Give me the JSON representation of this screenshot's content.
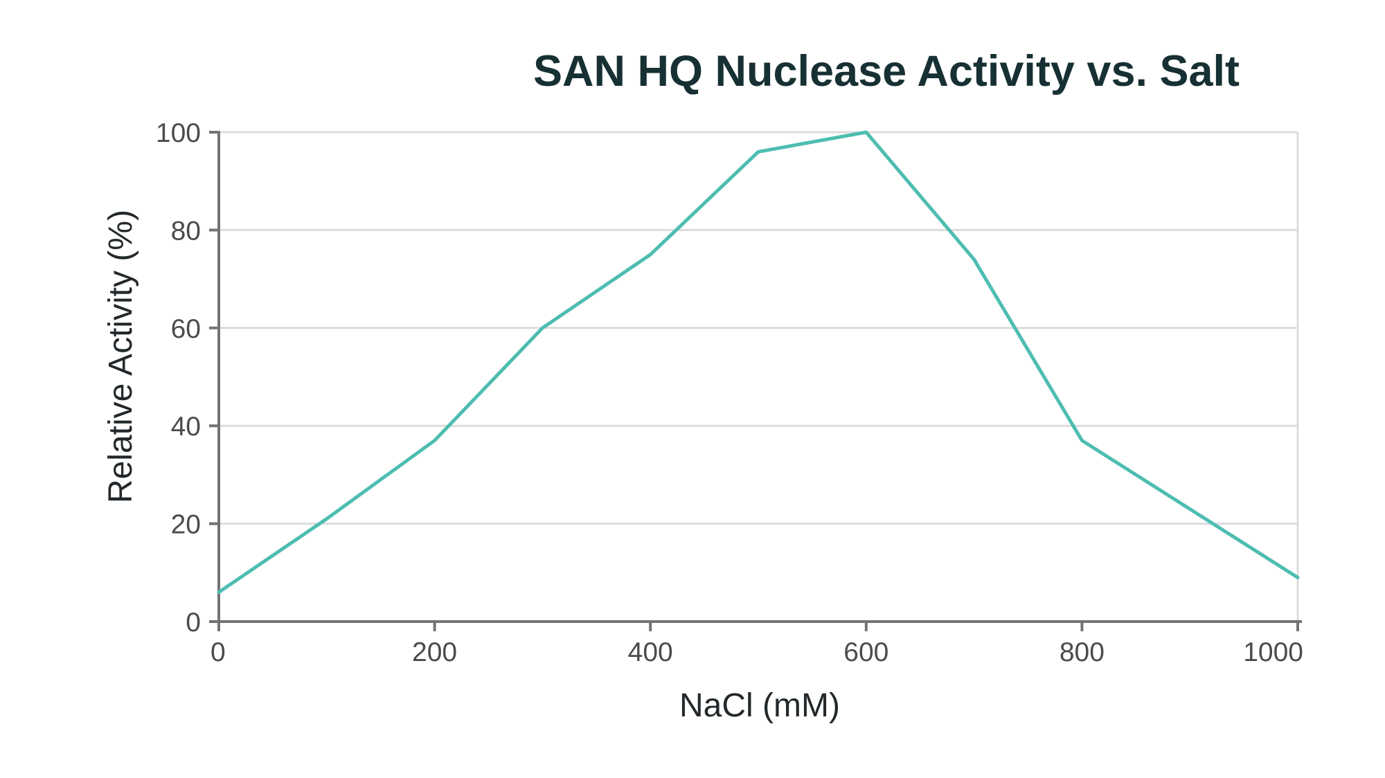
{
  "chart_data": {
    "type": "line",
    "title": "SAN HQ  Nuclease Activity vs. Salt",
    "xlabel": "NaCl (mM)",
    "ylabel": "Relative Activity (%)",
    "xlim": [
      0,
      1000
    ],
    "ylim": [
      0,
      100
    ],
    "x_ticks": [
      0,
      200,
      400,
      600,
      800,
      1000
    ],
    "y_ticks": [
      0,
      20,
      40,
      60,
      80,
      100
    ],
    "grid": true,
    "legend": "none",
    "series": [
      {
        "x": [
          0,
          100,
          200,
          300,
          400,
          500,
          600,
          700,
          800,
          900,
          1000
        ],
        "y": [
          6,
          21,
          37,
          60,
          75,
          96,
          100,
          74,
          37,
          23,
          9
        ],
        "color": "#4dbdb0"
      }
    ]
  }
}
